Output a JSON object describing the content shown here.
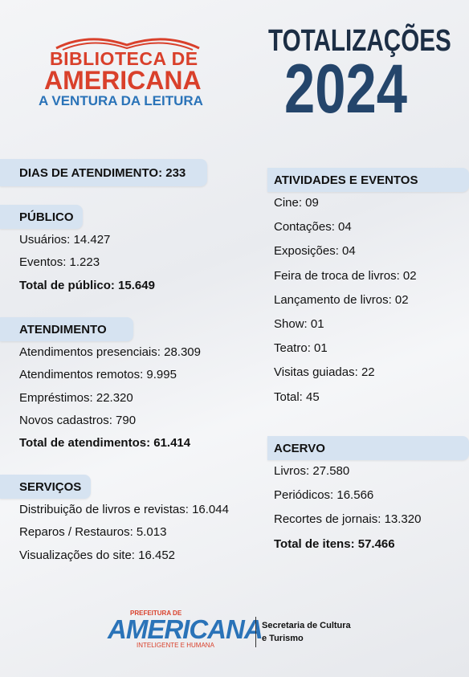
{
  "logo": {
    "line1": "BIBLIOTECA DE",
    "line2": "AMERICANA",
    "tagline": "A VENTURA DA LEITURA"
  },
  "header": {
    "title": "TOTALIZAÇÕES",
    "year": "2024"
  },
  "days": "DIAS DE ATENDIMENTO: 233",
  "left_sections": [
    {
      "title": "PÚBLICO",
      "items": [
        "Usuários: 14.427",
        "Eventos: 1.223"
      ],
      "total": "Total de público: 15.649"
    },
    {
      "title": "ATENDIMENTO",
      "items": [
        "Atendimentos presenciais: 28.309",
        "Atendimentos remotos: 9.995",
        "Empréstimos: 22.320",
        "Novos cadastros: 790"
      ],
      "total": "Total de atendimentos: 61.414"
    },
    {
      "title": "SERVIÇOS",
      "items": [
        "Distribuição de livros e revistas: 16.044",
        "Reparos / Restauros: 5.013",
        "Visualizações do site: 16.452"
      ]
    }
  ],
  "right_sections": [
    {
      "title": "ATIVIDADES E EVENTOS",
      "items": [
        "Cine: 09",
        "Contações: 04",
        "Exposições: 04",
        "Feira de troca de livros: 02",
        "Lançamento de livros: 02",
        "Show: 01",
        "Teatro: 01",
        "Visitas guiadas: 22",
        "Total: 45"
      ]
    },
    {
      "title": "ACERVO",
      "items": [
        "Livros: 27.580",
        "Periódicos: 16.566",
        "Recortes de jornais: 13.320"
      ],
      "total": "Total de itens: 57.466"
    }
  ],
  "footer": {
    "prefeitura": "PREFEITURA DE",
    "city": "AMERICANA",
    "slogan": "INTELIGENTE E HUMANA",
    "secretaria_line1": "Secretaria de Cultura",
    "secretaria_line2": "e Turismo"
  }
}
